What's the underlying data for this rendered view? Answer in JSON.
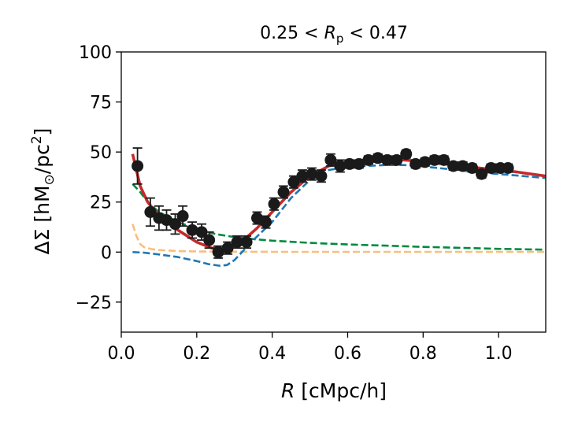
{
  "chart_data": {
    "type": "scatter",
    "title_prefix": "0.25 < ",
    "title_var": "R",
    "title_sub": "p",
    "title_suffix": " < 0.47",
    "xlabel_var": "R",
    "xlabel_unit": " [cMpc/h]",
    "ylabel_main": "ΔΣ [hM",
    "ylabel_sun": "⊙",
    "ylabel_mid": "/pc",
    "ylabel_sup": "2",
    "ylabel_end": "]",
    "xlim": [
      0.0,
      1.125
    ],
    "ylim": [
      -40,
      100
    ],
    "xticks": [
      0.0,
      0.2,
      0.4,
      0.6,
      0.8,
      1.0
    ],
    "xtick_labels": [
      "0.0",
      "0.2",
      "0.4",
      "0.6",
      "0.8",
      "1.0"
    ],
    "yticks": [
      -25,
      0,
      25,
      50,
      75,
      100
    ],
    "ytick_labels": [
      "−25",
      "0",
      "25",
      "50",
      "75",
      "100"
    ],
    "points": {
      "name": "data",
      "color": "#1a1a1a",
      "x": [
        0.043,
        0.077,
        0.1,
        0.12,
        0.143,
        0.163,
        0.188,
        0.213,
        0.233,
        0.257,
        0.282,
        0.307,
        0.332,
        0.36,
        0.383,
        0.405,
        0.43,
        0.457,
        0.48,
        0.505,
        0.53,
        0.555,
        0.58,
        0.605,
        0.63,
        0.655,
        0.68,
        0.705,
        0.73,
        0.755,
        0.78,
        0.805,
        0.83,
        0.855,
        0.88,
        0.905,
        0.93,
        0.955,
        0.98,
        1.005,
        1.025
      ],
      "y": [
        43,
        20,
        17,
        16,
        14,
        18,
        11,
        10,
        6,
        0,
        2,
        5,
        5,
        17,
        15,
        24,
        30,
        35,
        38,
        39,
        38,
        46,
        43,
        44,
        44,
        46,
        47,
        46,
        46,
        49,
        44,
        45,
        46,
        46,
        43,
        43,
        42,
        39,
        42,
        42,
        42
      ],
      "err": [
        9,
        7,
        6,
        5,
        5,
        5,
        4,
        4,
        4,
        3,
        3,
        3,
        3,
        3,
        3,
        3,
        3,
        3,
        3,
        3,
        3,
        3,
        3,
        2,
        2,
        2,
        2,
        2,
        2,
        2,
        2,
        2,
        2,
        2,
        2,
        2,
        2,
        2,
        2,
        2,
        2
      ]
    },
    "series": [
      {
        "name": "orange-dashed",
        "color": "#f9bf7a",
        "style": "dashed",
        "x": [
          0.03,
          0.04,
          0.05,
          0.06,
          0.08,
          0.1,
          0.15,
          0.2,
          0.3,
          0.4,
          0.6,
          0.8,
          1.0,
          1.125
        ],
        "y": [
          14,
          8,
          4,
          2.5,
          1.5,
          1,
          0.5,
          0.3,
          0.2,
          0.1,
          0.1,
          0.1,
          0.1,
          0.1
        ]
      },
      {
        "name": "green-dashed",
        "color": "#008a3e",
        "style": "dashed",
        "x": [
          0.03,
          0.05,
          0.07,
          0.1,
          0.15,
          0.2,
          0.25,
          0.3,
          0.35,
          0.4,
          0.5,
          0.6,
          0.7,
          0.8,
          0.9,
          1.0,
          1.125
        ],
        "y": [
          34,
          30,
          25,
          20,
          15,
          11.5,
          9,
          7.5,
          6.5,
          5.7,
          4.6,
          3.8,
          3.2,
          2.6,
          2.1,
          1.6,
          1.2
        ]
      },
      {
        "name": "blue-dashed",
        "color": "#1f77b4",
        "style": "dashed",
        "x": [
          0.03,
          0.06,
          0.1,
          0.15,
          0.2,
          0.23,
          0.26,
          0.28,
          0.3,
          0.32,
          0.35,
          0.4,
          0.45,
          0.5,
          0.55,
          0.6,
          0.65,
          0.7,
          0.75,
          0.8,
          0.85,
          0.9,
          0.95,
          1.0,
          1.05,
          1.125
        ],
        "y": [
          0,
          -0.3,
          -1.2,
          -2.5,
          -4.5,
          -6,
          -6.8,
          -6.5,
          -4,
          0,
          6,
          15,
          27,
          36,
          41,
          42.5,
          43,
          43.5,
          43.5,
          42.8,
          41.8,
          40.8,
          39.8,
          39,
          38.2,
          37
        ]
      },
      {
        "name": "red-solid",
        "color": "#c42a2a",
        "style": "solid",
        "x": [
          0.03,
          0.05,
          0.07,
          0.1,
          0.15,
          0.2,
          0.24,
          0.27,
          0.3,
          0.33,
          0.36,
          0.4,
          0.45,
          0.5,
          0.55,
          0.6,
          0.65,
          0.7,
          0.75,
          0.8,
          0.85,
          0.9,
          0.95,
          1.0,
          1.05,
          1.125
        ],
        "y": [
          49,
          33,
          25,
          18,
          11,
          5,
          2,
          1.5,
          3,
          7,
          12,
          20,
          30,
          38,
          43,
          45,
          46,
          46.2,
          46,
          45.2,
          44.2,
          43,
          42,
          41,
          40,
          38
        ]
      }
    ]
  }
}
